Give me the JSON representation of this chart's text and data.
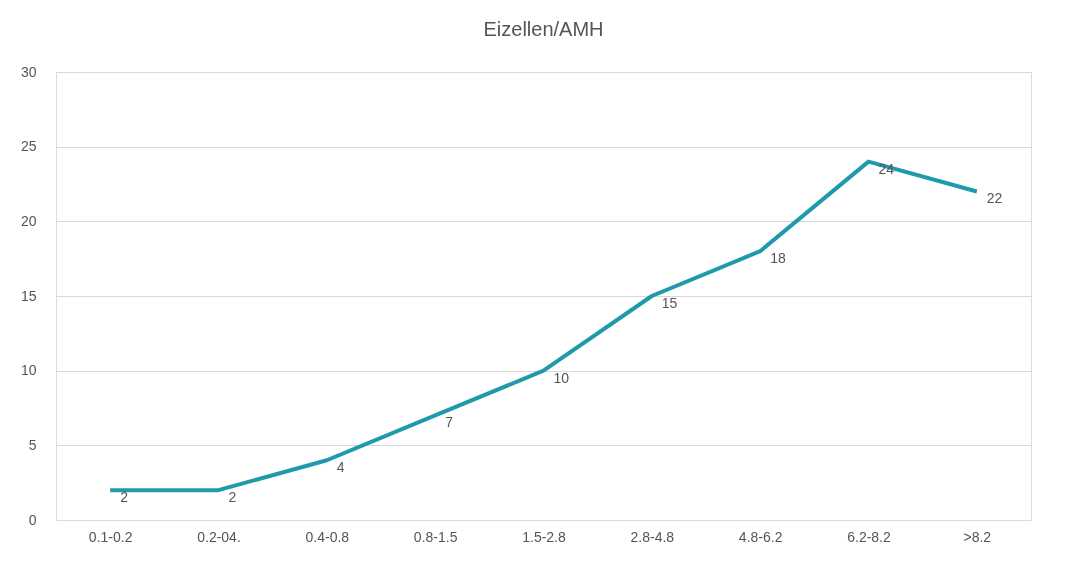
{
  "chart_data": {
    "type": "line",
    "title": "Eizellen/AMH",
    "categories": [
      "0.1-0.2",
      "0.2-04.",
      "0.4-0.8",
      "0.8-1.5",
      "1.5-2.8",
      "2.8-4.8",
      "4.8-6.2",
      "6.2-8.2",
      ">8.2"
    ],
    "series": [
      {
        "color": "#1f9aab",
        "values": [
          2,
          2,
          4,
          7,
          10,
          15,
          18,
          24,
          22
        ]
      }
    ],
    "ylim": [
      0,
      30
    ],
    "yticks": [
      0,
      5,
      10,
      15,
      20,
      25,
      30
    ],
    "grid": "y",
    "data_labels": true,
    "marker": "none",
    "line_style": "solid"
  }
}
